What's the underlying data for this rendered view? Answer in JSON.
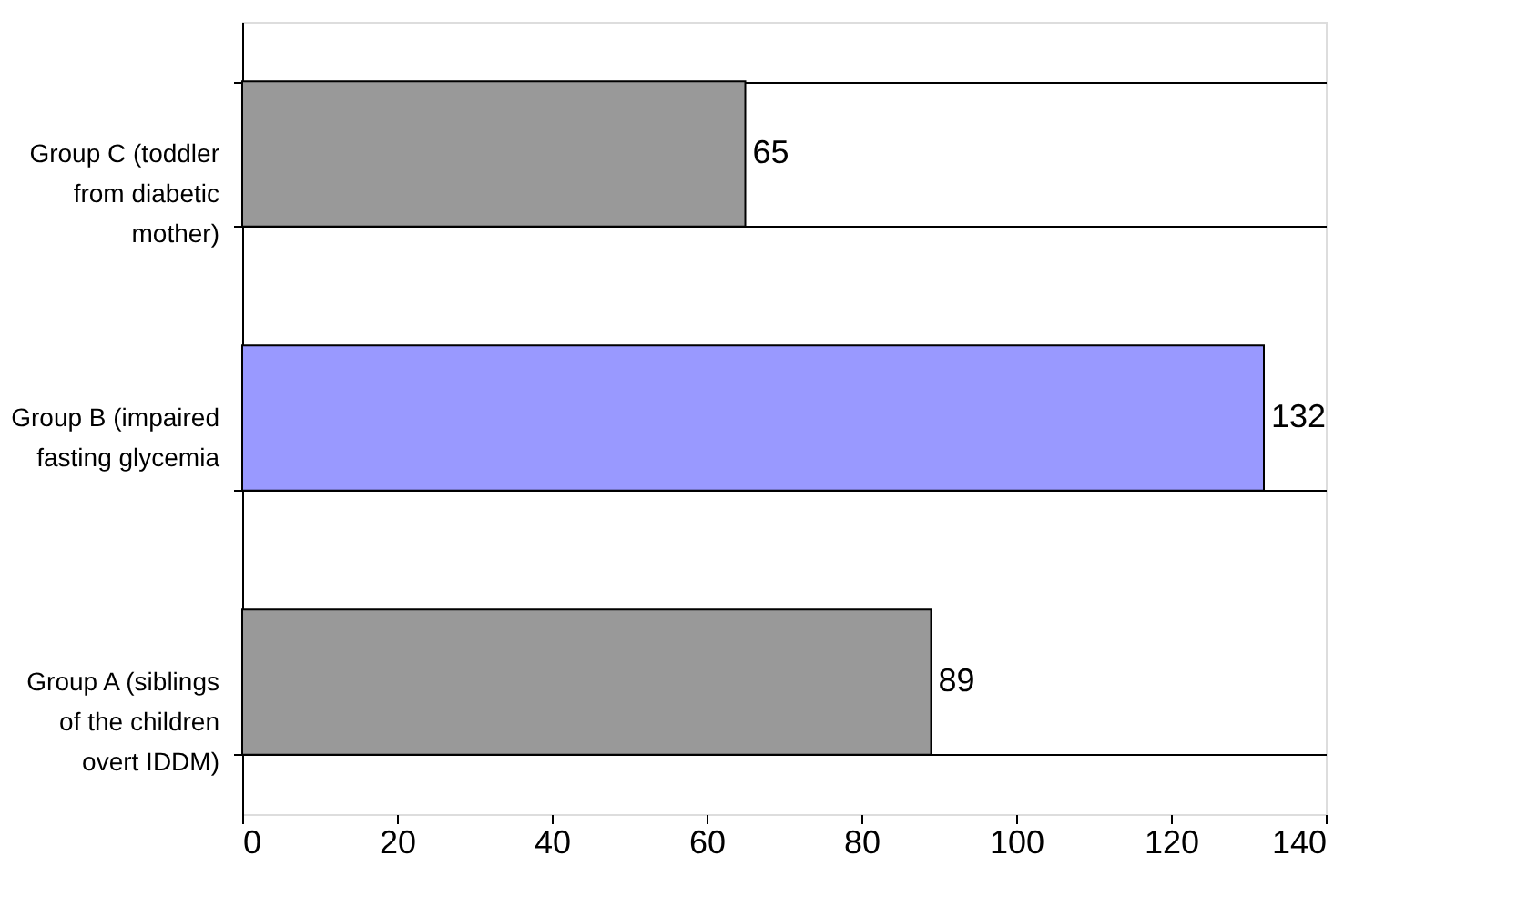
{
  "chart_data": {
    "type": "bar",
    "orientation": "horizontal",
    "categories": [
      "Group C (toddler from diabetic mother)",
      "Group B (impaired fasting glycemia",
      "Group A (siblings of the children overt IDDM)"
    ],
    "values": [
      65,
      132,
      89
    ],
    "colors": [
      "#999999",
      "#9999ff",
      "#999999"
    ],
    "xlim": [
      0,
      140
    ],
    "xticks": [
      0,
      20,
      40,
      60,
      80,
      100,
      120,
      140
    ],
    "grid": "y",
    "data_labels": true
  }
}
